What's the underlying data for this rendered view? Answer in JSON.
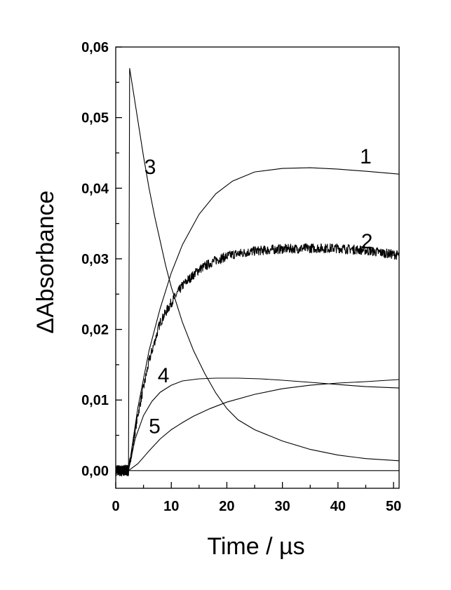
{
  "chart_data": {
    "type": "line",
    "xlabel": "Time / µs",
    "ylabel": "ΔAbsorbance",
    "xlim": [
      0,
      51
    ],
    "ylim": [
      -0.0025,
      0.06
    ],
    "xticks": [
      "0",
      "10",
      "20",
      "30",
      "40",
      "50"
    ],
    "yticks": [
      "0,00",
      "0,01",
      "0,02",
      "0,03",
      "0,04",
      "0,05",
      "0,06"
    ],
    "grid": false,
    "legend": "none",
    "baseline_y": 0.0,
    "series": [
      {
        "label": "1",
        "label_pos": [
          45,
          0.0445
        ],
        "noise": false,
        "x": [
          2.3,
          4,
          6,
          8,
          10,
          12,
          15,
          18,
          21,
          25,
          30,
          35,
          40,
          45,
          51
        ],
        "y": [
          0.0,
          0.009,
          0.017,
          0.023,
          0.028,
          0.032,
          0.0363,
          0.0392,
          0.041,
          0.0423,
          0.0428,
          0.0429,
          0.0427,
          0.0424,
          0.042
        ]
      },
      {
        "label": "2",
        "label_pos": [
          45.2,
          0.0325
        ],
        "noise": true,
        "x": [
          2.3,
          4,
          6,
          8,
          10,
          12,
          15,
          18,
          21,
          25,
          30,
          35,
          40,
          45,
          51
        ],
        "y": [
          0.0,
          0.008,
          0.0155,
          0.021,
          0.0238,
          0.0262,
          0.0285,
          0.0298,
          0.0306,
          0.0311,
          0.0314,
          0.0315,
          0.0315,
          0.0312,
          0.0305
        ]
      },
      {
        "label": "3",
        "label_pos": [
          6.2,
          0.043
        ],
        "noise": false,
        "x": [
          2.5,
          3,
          4,
          5,
          6,
          7,
          8,
          9,
          10,
          12,
          14,
          16,
          18,
          20,
          22,
          25,
          30,
          35,
          40,
          45,
          51
        ],
        "y": [
          0.057,
          0.0545,
          0.0495,
          0.0445,
          0.04,
          0.036,
          0.0325,
          0.029,
          0.026,
          0.021,
          0.017,
          0.0138,
          0.011,
          0.0088,
          0.0072,
          0.0058,
          0.0042,
          0.003,
          0.0022,
          0.0017,
          0.0014
        ]
      },
      {
        "label": "4",
        "label_pos": [
          8.6,
          0.0135
        ],
        "noise": false,
        "x": [
          2.3,
          3.5,
          5,
          6.5,
          8,
          10,
          12,
          15,
          18,
          22,
          26,
          30,
          35,
          40,
          45,
          51
        ],
        "y": [
          0.0,
          0.0045,
          0.0078,
          0.0098,
          0.0111,
          0.0121,
          0.0127,
          0.013,
          0.0131,
          0.0131,
          0.013,
          0.0128,
          0.0125,
          0.0122,
          0.0119,
          0.0117
        ]
      },
      {
        "label": "5",
        "label_pos": [
          7.0,
          0.0063
        ],
        "noise": false,
        "x": [
          2.3,
          4,
          6,
          8,
          10,
          12,
          14,
          17,
          20,
          25,
          30,
          35,
          40,
          45,
          51
        ],
        "y": [
          0.0,
          0.001,
          0.0028,
          0.0045,
          0.0058,
          0.0068,
          0.0077,
          0.0088,
          0.0097,
          0.0108,
          0.0116,
          0.0121,
          0.0124,
          0.0126,
          0.0129
        ]
      }
    ]
  }
}
